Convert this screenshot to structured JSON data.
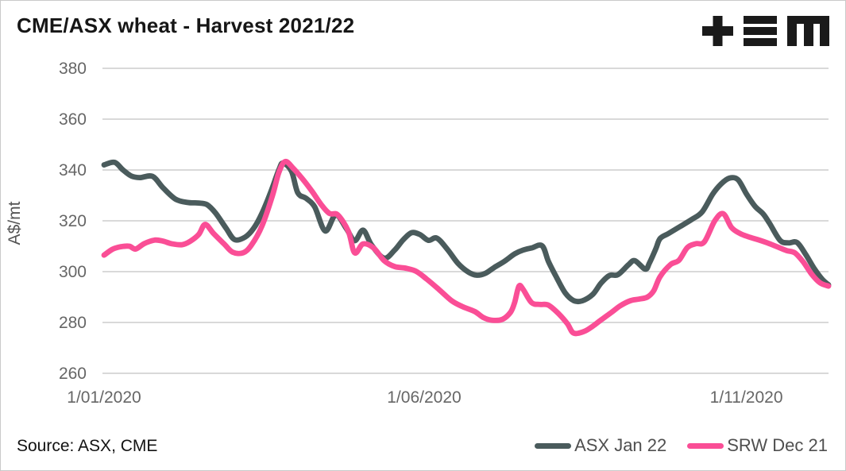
{
  "header": {
    "title": "CME/ASX wheat - Harvest 2021/22",
    "logo_icon": "tem-plus-bars-m-logo"
  },
  "footer": {
    "source": "Source: ASX, CME"
  },
  "colors": {
    "asx_line": "#4a5b5c",
    "srw_line": "#fa4e96",
    "gridline": "#d9d9d9",
    "tick_text": "#666666",
    "logo": "#1a1a1a"
  },
  "chart_data": {
    "type": "line",
    "title": "CME/ASX wheat - Harvest 2021/22",
    "xlabel": "",
    "ylabel": "A$/mt",
    "ylim": [
      260,
      380
    ],
    "y_ticks": [
      380,
      360,
      340,
      320,
      300,
      280,
      260
    ],
    "x_range_days": [
      0,
      344
    ],
    "x_ticks": [
      {
        "day": 0,
        "label": "1/01/2020"
      },
      {
        "day": 152,
        "label": "1/06/2020"
      },
      {
        "day": 305,
        "label": "1/11/2020"
      }
    ],
    "grid": "horizontal",
    "legend_position": "bottom-right",
    "series": [
      {
        "name": "ASX Jan 22",
        "color": "#4a5b5c",
        "points": [
          [
            0,
            342
          ],
          [
            5,
            343
          ],
          [
            9,
            340
          ],
          [
            13,
            337.6
          ],
          [
            17,
            337
          ],
          [
            23,
            337.5
          ],
          [
            28,
            333
          ],
          [
            34,
            328.5
          ],
          [
            40,
            327.2
          ],
          [
            45,
            327
          ],
          [
            49,
            326.3
          ],
          [
            53,
            323
          ],
          [
            58,
            317
          ],
          [
            62,
            312.6
          ],
          [
            67,
            313.6
          ],
          [
            71,
            317
          ],
          [
            75,
            323
          ],
          [
            79,
            331
          ],
          [
            83,
            340
          ],
          [
            85,
            342.7
          ],
          [
            89,
            339.5
          ],
          [
            92,
            331
          ],
          [
            96,
            328.8
          ],
          [
            100,
            325.5
          ],
          [
            105,
            316
          ],
          [
            110,
            322.3
          ],
          [
            115,
            317
          ],
          [
            119,
            312.2
          ],
          [
            123,
            316.3
          ],
          [
            127,
            310.5
          ],
          [
            133,
            305.3
          ],
          [
            138,
            308.5
          ],
          [
            142,
            312.5
          ],
          [
            146,
            315.3
          ],
          [
            150,
            314.6
          ],
          [
            154,
            312.3
          ],
          [
            158,
            313.2
          ],
          [
            163,
            308.8
          ],
          [
            168,
            303.3
          ],
          [
            173,
            299.8
          ],
          [
            177,
            298.6
          ],
          [
            181,
            299.3
          ],
          [
            185,
            301.5
          ],
          [
            190,
            304
          ],
          [
            195,
            307
          ],
          [
            199,
            308.5
          ],
          [
            203,
            309.3
          ],
          [
            208,
            310.2
          ],
          [
            211,
            304
          ],
          [
            215,
            297.5
          ],
          [
            219,
            291.6
          ],
          [
            223,
            288.6
          ],
          [
            227,
            288.5
          ],
          [
            232,
            291
          ],
          [
            236,
            295.5
          ],
          [
            240,
            298.5
          ],
          [
            244,
            298.8
          ],
          [
            249,
            302.7
          ],
          [
            252,
            304.3
          ],
          [
            257,
            301
          ],
          [
            259,
            303.5
          ],
          [
            262,
            309
          ],
          [
            264,
            313
          ],
          [
            268,
            315
          ],
          [
            273,
            317.5
          ],
          [
            279,
            320.5
          ],
          [
            284,
            323.5
          ],
          [
            289,
            330.5
          ],
          [
            293,
            334.5
          ],
          [
            297,
            336.8
          ],
          [
            301,
            336.2
          ],
          [
            305,
            330.6
          ],
          [
            309,
            325.8
          ],
          [
            313,
            322.7
          ],
          [
            316,
            319
          ],
          [
            321,
            312.3
          ],
          [
            325,
            311.3
          ],
          [
            329,
            311.5
          ],
          [
            333,
            307
          ],
          [
            337,
            301.5
          ],
          [
            341,
            297
          ],
          [
            344,
            294.8
          ]
        ]
      },
      {
        "name": "SRW Dec 21",
        "color": "#fa4e96",
        "points": [
          [
            0,
            306.5
          ],
          [
            4,
            308.8
          ],
          [
            8,
            309.8
          ],
          [
            12,
            310
          ],
          [
            15,
            308.9
          ],
          [
            19,
            311
          ],
          [
            24,
            312.4
          ],
          [
            28,
            312
          ],
          [
            32,
            311
          ],
          [
            37,
            310.6
          ],
          [
            41,
            312
          ],
          [
            45,
            314.7
          ],
          [
            48,
            318.6
          ],
          [
            52,
            315
          ],
          [
            57,
            310.9
          ],
          [
            61,
            307.7
          ],
          [
            66,
            307.4
          ],
          [
            70,
            310.5
          ],
          [
            75,
            318
          ],
          [
            80,
            330
          ],
          [
            83,
            339
          ],
          [
            86,
            343.3
          ],
          [
            90,
            340.5
          ],
          [
            95,
            335.7
          ],
          [
            99,
            331.3
          ],
          [
            103,
            326.5
          ],
          [
            107,
            322.9
          ],
          [
            111,
            322.3
          ],
          [
            116,
            315.9
          ],
          [
            119,
            307.4
          ],
          [
            123,
            310.9
          ],
          [
            128,
            309.3
          ],
          [
            133,
            304.3
          ],
          [
            138,
            302
          ],
          [
            143,
            301.4
          ],
          [
            148,
            300.2
          ],
          [
            153,
            297.2
          ],
          [
            159,
            293
          ],
          [
            165,
            288.6
          ],
          [
            170,
            286.3
          ],
          [
            176,
            284.3
          ],
          [
            180,
            282
          ],
          [
            184,
            280.9
          ],
          [
            189,
            281.2
          ],
          [
            193,
            284
          ],
          [
            195,
            288
          ],
          [
            197,
            294.3
          ],
          [
            199,
            293
          ],
          [
            203,
            287.8
          ],
          [
            207,
            287.1
          ],
          [
            211,
            286.8
          ],
          [
            216,
            283.3
          ],
          [
            220,
            279.5
          ],
          [
            223,
            275.8
          ],
          [
            228,
            276.5
          ],
          [
            232,
            278.5
          ],
          [
            236,
            281
          ],
          [
            241,
            284
          ],
          [
            245,
            286.5
          ],
          [
            250,
            288.6
          ],
          [
            254,
            289.2
          ],
          [
            258,
            290
          ],
          [
            261,
            292.5
          ],
          [
            264,
            298
          ],
          [
            269,
            302.8
          ],
          [
            273,
            304.5
          ],
          [
            277,
            309.5
          ],
          [
            281,
            311
          ],
          [
            285,
            311.7
          ],
          [
            290,
            320
          ],
          [
            294,
            322.8
          ],
          [
            298,
            317.3
          ],
          [
            302,
            315
          ],
          [
            306,
            313.7
          ],
          [
            310,
            312.7
          ],
          [
            315,
            311.3
          ],
          [
            319,
            310
          ],
          [
            324,
            308.3
          ],
          [
            328,
            307.4
          ],
          [
            332,
            303.8
          ],
          [
            336,
            299
          ],
          [
            340,
            295.6
          ],
          [
            344,
            294.3
          ]
        ]
      }
    ]
  }
}
